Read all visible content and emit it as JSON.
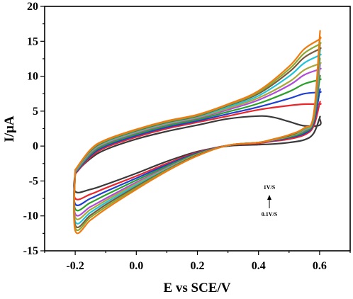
{
  "chart_data": {
    "type": "line",
    "title": "",
    "xlabel": "E vs SCE/V",
    "ylabel": "I/μA",
    "xlim": [
      -0.3,
      0.7
    ],
    "ylim": [
      -15,
      20
    ],
    "xticks": [
      -0.2,
      0.0,
      0.2,
      0.4,
      0.6
    ],
    "xtick_labels": [
      "-0.2",
      "0.0",
      "0.2",
      "0.4",
      "0.6"
    ],
    "yticks": [
      -15,
      -10,
      -5,
      0,
      5,
      10,
      15,
      20
    ],
    "ytick_labels": [
      "-15",
      "-10",
      "-5",
      "0",
      "5",
      "10",
      "15",
      "20"
    ],
    "grid": false,
    "legend": "none",
    "annotation": {
      "top": "1V/S",
      "bottom": "0.1V/S"
    },
    "series": [
      {
        "color": "#3a3a3a",
        "E_low": -0.2,
        "E_high": 0.6,
        "anodic": {
          "x": [
            -0.2,
            -0.15,
            -0.1,
            0.0,
            0.1,
            0.2,
            0.3,
            0.4,
            0.45,
            0.5,
            0.55,
            0.6
          ],
          "y": [
            -3.8,
            -1.8,
            -0.5,
            1.0,
            2.1,
            3.0,
            3.9,
            4.3,
            4.1,
            3.5,
            2.9,
            3.0
          ]
        },
        "top_current": 4.0,
        "cathodic": {
          "x": [
            0.6,
            0.58,
            0.55,
            0.5,
            0.45,
            0.4,
            0.3,
            0.2,
            0.1,
            0.0,
            -0.1,
            -0.15,
            -0.2
          ],
          "y": [
            4.0,
            1.8,
            0.9,
            0.5,
            0.3,
            0.2,
            0.0,
            -0.8,
            -2.2,
            -3.9,
            -5.5,
            -6.2,
            -6.5
          ]
        }
      },
      {
        "color": "#e8262c",
        "E_low": -0.2,
        "E_high": 0.6,
        "anodic": {
          "x": [
            -0.2,
            -0.15,
            -0.1,
            0.0,
            0.1,
            0.2,
            0.3,
            0.4,
            0.5,
            0.55,
            0.6
          ],
          "y": [
            -4.0,
            -1.6,
            -0.2,
            1.3,
            2.5,
            3.4,
            4.3,
            5.2,
            5.8,
            6.0,
            6.0
          ]
        },
        "top_current": 6.1,
        "cathodic": {
          "x": [
            0.6,
            0.58,
            0.55,
            0.5,
            0.45,
            0.4,
            0.3,
            0.2,
            0.1,
            0.0,
            -0.1,
            -0.15,
            -0.2
          ],
          "y": [
            6.1,
            2.8,
            1.6,
            1.0,
            0.7,
            0.4,
            0.1,
            -0.9,
            -2.5,
            -4.3,
            -6.0,
            -6.9,
            -7.5
          ]
        }
      },
      {
        "color": "#1f3fd0",
        "E_low": -0.2,
        "E_high": 0.6,
        "anodic": {
          "x": [
            -0.2,
            -0.15,
            -0.1,
            0.0,
            0.1,
            0.2,
            0.3,
            0.4,
            0.5,
            0.55,
            0.6
          ],
          "y": [
            -3.9,
            -1.4,
            0.0,
            1.5,
            2.7,
            3.6,
            4.6,
            5.6,
            6.8,
            7.5,
            7.7
          ]
        },
        "top_current": 7.8,
        "cathodic": {
          "x": [
            0.6,
            0.58,
            0.55,
            0.5,
            0.45,
            0.4,
            0.3,
            0.2,
            0.1,
            0.0,
            -0.1,
            -0.15,
            -0.2
          ],
          "y": [
            7.8,
            3.2,
            1.8,
            1.2,
            0.8,
            0.5,
            0.1,
            -1.0,
            -2.7,
            -4.6,
            -6.5,
            -7.5,
            -8.3
          ]
        }
      },
      {
        "color": "#2aa02a",
        "E_low": -0.2,
        "E_high": 0.6,
        "anodic": {
          "x": [
            -0.2,
            -0.15,
            -0.1,
            0.0,
            0.1,
            0.2,
            0.3,
            0.4,
            0.5,
            0.55,
            0.6
          ],
          "y": [
            -3.8,
            -1.2,
            0.2,
            1.7,
            2.9,
            3.8,
            4.9,
            6.1,
            7.8,
            8.9,
            9.5
          ]
        },
        "top_current": 9.6,
        "cathodic": {
          "x": [
            0.6,
            0.58,
            0.55,
            0.5,
            0.45,
            0.4,
            0.3,
            0.2,
            0.1,
            0.0,
            -0.1,
            -0.15,
            -0.2
          ],
          "y": [
            9.6,
            3.5,
            2.0,
            1.3,
            0.9,
            0.5,
            0.1,
            -1.1,
            -2.9,
            -4.9,
            -7.0,
            -8.1,
            -9.0
          ]
        }
      },
      {
        "color": "#b04ad8",
        "E_low": -0.2,
        "E_high": 0.6,
        "anodic": {
          "x": [
            -0.2,
            -0.15,
            -0.1,
            0.0,
            0.1,
            0.2,
            0.3,
            0.4,
            0.5,
            0.55,
            0.6
          ],
          "y": [
            -3.7,
            -1.0,
            0.4,
            1.9,
            3.1,
            4.0,
            5.2,
            6.6,
            8.7,
            10.2,
            11.0
          ]
        },
        "top_current": 11.1,
        "cathodic": {
          "x": [
            0.6,
            0.58,
            0.55,
            0.5,
            0.45,
            0.4,
            0.3,
            0.2,
            0.1,
            0.0,
            -0.1,
            -0.15,
            -0.2
          ],
          "y": [
            11.1,
            3.8,
            2.2,
            1.4,
            0.9,
            0.5,
            0.1,
            -1.2,
            -3.1,
            -5.2,
            -7.5,
            -8.7,
            -9.7
          ]
        }
      },
      {
        "color": "#a8a83a",
        "E_low": -0.2,
        "E_high": 0.6,
        "anodic": {
          "x": [
            -0.2,
            -0.15,
            -0.1,
            0.0,
            0.1,
            0.2,
            0.3,
            0.4,
            0.5,
            0.55,
            0.6
          ],
          "y": [
            -3.6,
            -0.9,
            0.5,
            2.0,
            3.2,
            4.1,
            5.4,
            6.9,
            9.2,
            10.9,
            11.8
          ]
        },
        "top_current": 11.9,
        "cathodic": {
          "x": [
            0.6,
            0.58,
            0.55,
            0.5,
            0.45,
            0.4,
            0.3,
            0.2,
            0.1,
            0.0,
            -0.1,
            -0.15,
            -0.2
          ],
          "y": [
            11.9,
            3.9,
            2.3,
            1.4,
            0.9,
            0.5,
            0.1,
            -1.2,
            -3.2,
            -5.4,
            -7.8,
            -9.1,
            -10.2
          ]
        }
      },
      {
        "color": "#22c3d8",
        "E_low": -0.2,
        "E_high": 0.6,
        "anodic": {
          "x": [
            -0.2,
            -0.15,
            -0.1,
            0.0,
            0.1,
            0.2,
            0.3,
            0.4,
            0.5,
            0.55,
            0.6
          ],
          "y": [
            -3.6,
            -0.8,
            0.6,
            2.1,
            3.3,
            4.2,
            5.6,
            7.2,
            10.0,
            11.9,
            13.0
          ]
        },
        "top_current": 13.1,
        "cathodic": {
          "x": [
            0.6,
            0.58,
            0.55,
            0.5,
            0.45,
            0.4,
            0.3,
            0.2,
            0.1,
            0.0,
            -0.1,
            -0.15,
            -0.2
          ],
          "y": [
            13.1,
            4.1,
            2.4,
            1.5,
            1.0,
            0.5,
            0.1,
            -1.3,
            -3.3,
            -5.6,
            -8.1,
            -9.5,
            -10.8
          ]
        }
      },
      {
        "color": "#7a5a3c",
        "E_low": -0.2,
        "E_high": 0.6,
        "anodic": {
          "x": [
            -0.2,
            -0.15,
            -0.1,
            0.0,
            0.1,
            0.2,
            0.3,
            0.4,
            0.5,
            0.55,
            0.6
          ],
          "y": [
            -3.5,
            -0.7,
            0.7,
            2.2,
            3.4,
            4.3,
            5.8,
            7.5,
            10.6,
            12.7,
            13.9
          ]
        },
        "top_current": 14.0,
        "cathodic": {
          "x": [
            0.6,
            0.58,
            0.55,
            0.5,
            0.45,
            0.4,
            0.3,
            0.2,
            0.1,
            0.0,
            -0.1,
            -0.15,
            -0.2
          ],
          "y": [
            14.0,
            4.2,
            2.5,
            1.5,
            1.0,
            0.5,
            0.1,
            -1.3,
            -3.4,
            -5.8,
            -8.4,
            -9.9,
            -11.3
          ]
        }
      },
      {
        "color": "#8aa830",
        "E_low": -0.2,
        "E_high": 0.6,
        "anodic": {
          "x": [
            -0.2,
            -0.15,
            -0.1,
            0.0,
            0.1,
            0.2,
            0.3,
            0.4,
            0.5,
            0.55,
            0.6
          ],
          "y": [
            -3.5,
            -0.6,
            0.8,
            2.3,
            3.5,
            4.4,
            5.9,
            7.7,
            11.0,
            13.3,
            14.6
          ]
        },
        "top_current": 14.8,
        "cathodic": {
          "x": [
            0.6,
            0.58,
            0.55,
            0.5,
            0.45,
            0.4,
            0.3,
            0.2,
            0.1,
            0.0,
            -0.1,
            -0.15,
            -0.2
          ],
          "y": [
            14.8,
            4.3,
            2.5,
            1.6,
            1.0,
            0.5,
            0.1,
            -1.4,
            -3.5,
            -6.0,
            -8.7,
            -10.2,
            -11.7
          ]
        }
      },
      {
        "color": "#f07a12",
        "E_low": -0.2,
        "E_high": 0.6,
        "anodic": {
          "x": [
            -0.2,
            -0.15,
            -0.1,
            0.0,
            0.1,
            0.2,
            0.3,
            0.4,
            0.5,
            0.55,
            0.6
          ],
          "y": [
            -3.4,
            -0.5,
            0.9,
            2.4,
            3.6,
            4.5,
            6.0,
            7.9,
            11.4,
            13.9,
            15.3
          ]
        },
        "top_current": 15.6,
        "cathodic": {
          "x": [
            0.6,
            0.58,
            0.55,
            0.5,
            0.45,
            0.4,
            0.3,
            0.2,
            0.1,
            0.0,
            -0.1,
            -0.15,
            -0.2
          ],
          "y": [
            15.6,
            4.4,
            2.6,
            1.6,
            1.0,
            0.5,
            0.1,
            -1.4,
            -3.6,
            -6.2,
            -9.0,
            -10.6,
            -12.1
          ]
        }
      }
    ]
  }
}
